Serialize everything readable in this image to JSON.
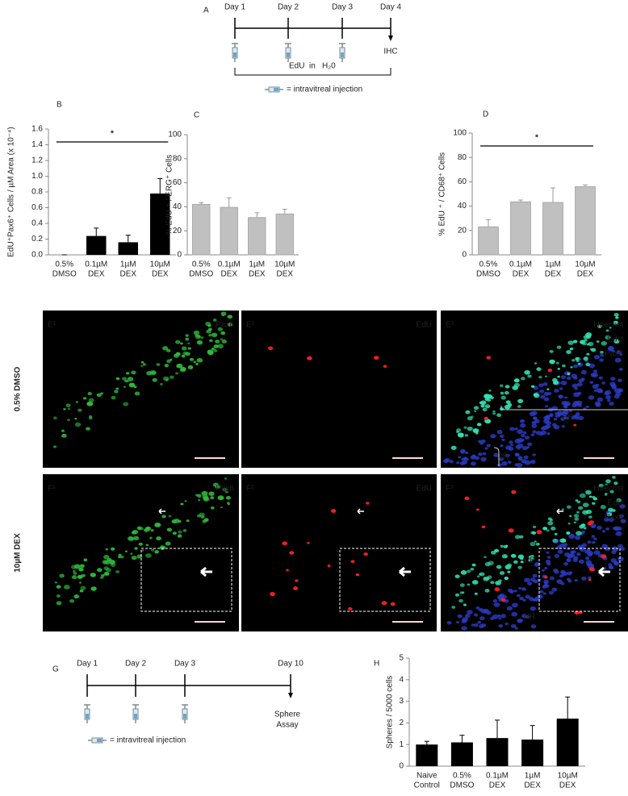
{
  "timeline_a": {
    "panel": "A",
    "days": [
      "Day 1",
      "Day 2",
      "Day 3",
      "Day 4"
    ],
    "end": "IHC",
    "treatment": [
      "EdU",
      "in",
      "H₂0"
    ],
    "legend": "= intravitreal injection"
  },
  "timeline_g": {
    "panel": "G",
    "days": [
      "Day 1",
      "Day 2",
      "Day 3",
      "Day 10"
    ],
    "end": [
      "Sphere",
      "Assay"
    ],
    "legend": "= intravitreal injection"
  },
  "chart_data": [
    {
      "type": "bar",
      "panel": "B",
      "ylabel": "EdU⁺Pax6⁺ Cells / µM Area (x 10⁻⁴)",
      "categories": [
        [
          "0.5%",
          "DMSO"
        ],
        [
          "0.1µM",
          "DEX"
        ],
        [
          "1µM",
          "DEX"
        ],
        [
          "10µM",
          "DEX"
        ]
      ],
      "values": [
        0,
        0.24,
        0.16,
        0.78
      ],
      "errors": [
        0,
        0.1,
        0.09,
        0.19
      ],
      "color": "#000000",
      "ylim": [
        0,
        1.6
      ],
      "yticks": [
        {
          "value": 0,
          "label": "0.0"
        },
        0.2,
        0.4,
        0.6,
        0.8,
        {
          "value": 1,
          "label": "1.0"
        },
        1.2,
        1.4,
        1.6
      ],
      "significance": "*"
    },
    {
      "type": "bar",
      "panel": "C",
      "ylabel": "% EdU ⁺ / ERG⁺ Cells",
      "categories": [
        [
          "0.5%",
          "DMSO"
        ],
        [
          "0.1µM",
          "DEX"
        ],
        [
          "1µM",
          "DEX"
        ],
        [
          "10µM",
          "DEX"
        ]
      ],
      "values": [
        42,
        39.5,
        31,
        34
      ],
      "errors": [
        1.5,
        8,
        4,
        4
      ],
      "color": "#c0c0c0",
      "ylim": [
        0,
        100
      ],
      "yticks": [
        0,
        20,
        40,
        60,
        80,
        100
      ]
    },
    {
      "type": "bar",
      "panel": "D",
      "ylabel": "% EdU ⁺ / CD68⁺ Cells",
      "categories": [
        [
          "0.5%",
          "DMSO"
        ],
        [
          "0.1µM",
          "DEX"
        ],
        [
          "1µM",
          "DEX"
        ],
        [
          "10µM",
          "DEX"
        ]
      ],
      "values": [
        23,
        43.5,
        43,
        56
      ],
      "errors": [
        6,
        1.5,
        12,
        1.5
      ],
      "color": "#c0c0c0",
      "ylim": [
        0,
        100
      ],
      "yticks": [
        0,
        20,
        40,
        60,
        80,
        100
      ],
      "significance": "*"
    },
    {
      "type": "bar",
      "panel": "H",
      "ylabel": "Spheres / 5000 cells",
      "categories": [
        [
          "Naive",
          "Control"
        ],
        [
          "0.5%",
          "DMSO"
        ],
        [
          "0.1µM",
          "DEX"
        ],
        [
          "1µM",
          "DEX"
        ],
        [
          "10µM",
          "DEX"
        ]
      ],
      "values": [
        1.0,
        1.1,
        1.3,
        1.23,
        2.2
      ],
      "errors": [
        0.15,
        0.33,
        0.83,
        0.65,
        1.0
      ],
      "color": "#000000",
      "ylim": [
        0,
        5
      ],
      "yticks": [
        0,
        1,
        2,
        3,
        4,
        5
      ]
    }
  ],
  "micrographs": {
    "rows": [
      "0.5% DMSO",
      "10µM DEX"
    ],
    "panels": [
      [
        {
          "label": "E¹",
          "stains": [
            "Pax6"
          ]
        },
        {
          "label": "E²",
          "stains": [
            "EdU"
          ]
        },
        {
          "label": "E³",
          "stains": [
            "Hoechst",
            "EdU",
            "Pax6"
          ],
          "annotations": [
            "CE",
            "NR"
          ]
        }
      ],
      [
        {
          "label": "F¹",
          "stains": [
            "Pax6"
          ]
        },
        {
          "label": "F²",
          "stains": [
            "EdU"
          ]
        },
        {
          "label": "F³",
          "stains": [
            "Hoechst",
            "EdU",
            "Pax6"
          ],
          "annotations": [
            "CE",
            "NR"
          ]
        }
      ]
    ]
  }
}
